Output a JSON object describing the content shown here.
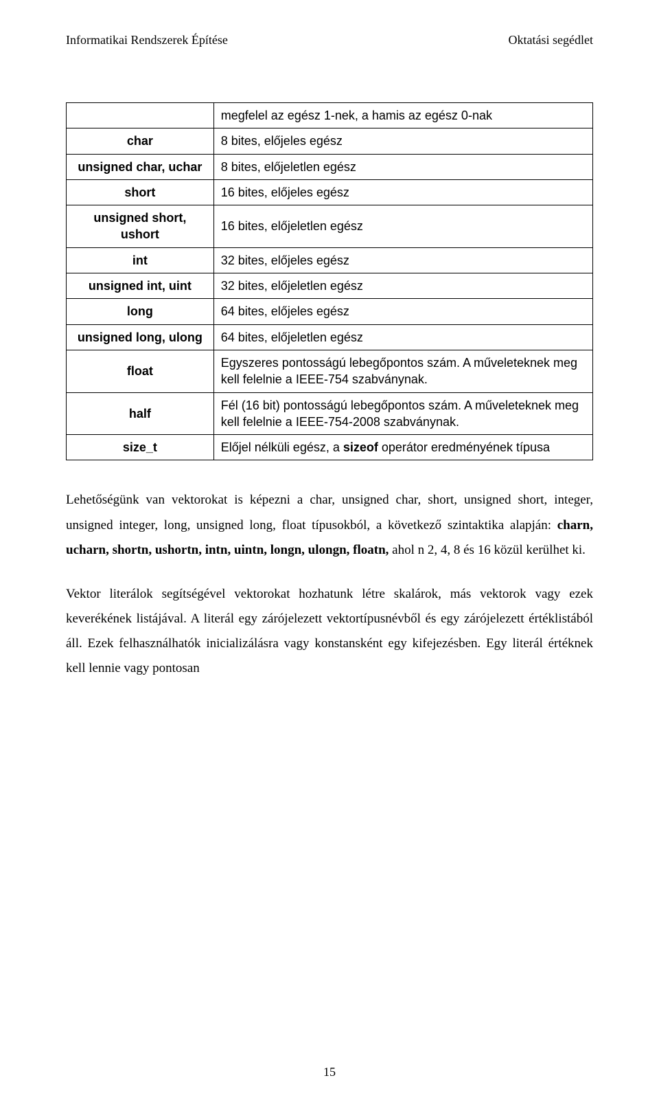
{
  "header": {
    "left": "Informatikai Rendszerek Építése",
    "right": "Oktatási segédlet"
  },
  "types_table": {
    "rows": [
      {
        "name": "",
        "desc": "megfelel az egész 1-nek, a hamis az egész 0-nak"
      },
      {
        "name": "char",
        "desc": "8 bites, előjeles egész"
      },
      {
        "name": "unsigned char, uchar",
        "desc": "8 bites, előjeletlen egész"
      },
      {
        "name": "short",
        "desc": "16 bites, előjeles egész"
      },
      {
        "name": "unsigned short, ushort",
        "desc": "16 bites, előjeletlen egész"
      },
      {
        "name": "int",
        "desc": "32 bites, előjeles egész"
      },
      {
        "name": "unsigned int, uint",
        "desc": "32 bites, előjeletlen egész"
      },
      {
        "name": "long",
        "desc": "64 bites, előjeles egész"
      },
      {
        "name": "unsigned long, ulong",
        "desc": "64 bites, előjeletlen egész"
      },
      {
        "name": "float",
        "desc": "Egyszeres pontosságú lebegőpontos szám. A műveleteknek meg kell felelnie a IEEE-754 szabványnak."
      },
      {
        "name": "half",
        "desc": "Fél (16 bit) pontosságú lebegőpontos szám. A műveleteknek meg kell felelnie a IEEE-754-2008 szabványnak."
      },
      {
        "name": "size_t",
        "desc_html": "Előjel nélküli egész, a <strong>sizeof</strong> operátor eredményének típusa"
      }
    ]
  },
  "paragraphs": {
    "p1_html": "Lehetőségünk van vektorokat is képezni a char, unsigned char, short, unsigned short, integer, unsigned integer, long, unsigned long, float típusokból, a következő szintaktika alapján: <strong>charn, ucharn, shortn, ushortn, intn, uintn, longn, ulongn, floatn,</strong> ahol n 2, 4, 8 és 16 közül kerülhet ki.",
    "p2": "Vektor literálok segítségével vektorokat hozhatunk létre skalárok, más vektorok vagy ezek keverékének listájával. A literál egy zárójelezett vektortípusnévből és egy zárójelezett értéklistából áll. Ezek felhasználhatók inicializálásra vagy konstansként egy kifejezésben. Egy literál értéknek kell lennie vagy pontosan"
  },
  "page_number": "15"
}
